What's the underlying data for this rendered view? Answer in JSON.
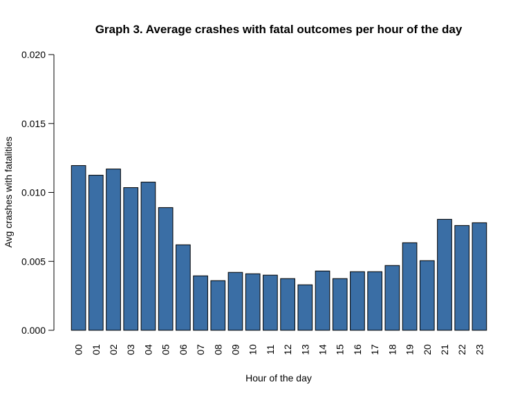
{
  "chart_data": {
    "type": "bar",
    "title": "Graph 3. Average crashes with fatal outcomes per hour of the day",
    "xlabel": "Hour of the day",
    "ylabel": "Avg crashes with fatalities",
    "categories": [
      "00",
      "01",
      "02",
      "03",
      "04",
      "05",
      "06",
      "07",
      "08",
      "09",
      "10",
      "11",
      "12",
      "13",
      "14",
      "15",
      "16",
      "17",
      "18",
      "19",
      "20",
      "21",
      "22",
      "23"
    ],
    "values": [
      0.01195,
      0.01125,
      0.0117,
      0.01035,
      0.01075,
      0.0089,
      0.0062,
      0.00395,
      0.0036,
      0.0042,
      0.0041,
      0.004,
      0.00375,
      0.0033,
      0.0043,
      0.00375,
      0.00425,
      0.00425,
      0.0047,
      0.00635,
      0.00505,
      0.00805,
      0.0076,
      0.0078
    ],
    "ylim": [
      0,
      0.02
    ],
    "yticks": [
      "0.000",
      "0.005",
      "0.010",
      "0.015",
      "0.020"
    ],
    "ytick_values": [
      0,
      0.005,
      0.01,
      0.015,
      0.02
    ],
    "bar_color": "#3a6ea5",
    "grid": false,
    "legend": "none"
  }
}
